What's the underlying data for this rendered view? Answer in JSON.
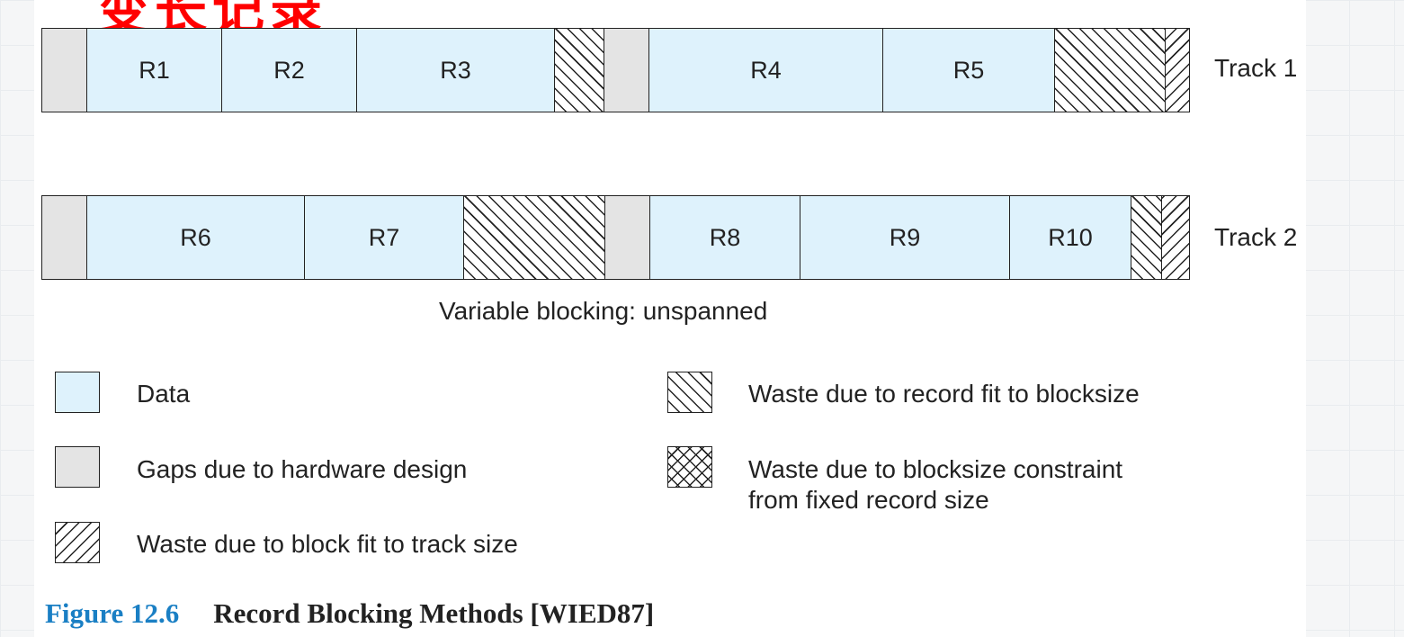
{
  "heading_fragment": "变长记录",
  "track1": {
    "label": "Track 1",
    "segments": [
      {
        "type": "gap"
      },
      {
        "type": "data",
        "label": "R1"
      },
      {
        "type": "data",
        "label": "R2"
      },
      {
        "type": "data",
        "label": "R3"
      },
      {
        "type": "waste-record"
      },
      {
        "type": "gap"
      },
      {
        "type": "data",
        "label": "R4"
      },
      {
        "type": "data",
        "label": "R5"
      },
      {
        "type": "waste-record"
      },
      {
        "type": "waste-track"
      }
    ]
  },
  "track2": {
    "label": "Track 2",
    "segments": [
      {
        "type": "gap"
      },
      {
        "type": "data",
        "label": "R6"
      },
      {
        "type": "data",
        "label": "R7"
      },
      {
        "type": "waste-record"
      },
      {
        "type": "gap"
      },
      {
        "type": "data",
        "label": "R8"
      },
      {
        "type": "data",
        "label": "R9"
      },
      {
        "type": "data",
        "label": "R10"
      },
      {
        "type": "waste-record"
      },
      {
        "type": "waste-track"
      }
    ]
  },
  "caption": "Variable blocking: unspanned",
  "legend": {
    "data": "Data",
    "gaps": "Gaps due to hardware design",
    "waste_track": "Waste due to block fit to track size",
    "waste_record": "Waste due to record fit to blocksize",
    "waste_constraint_line1": "Waste due to blocksize constraint",
    "waste_constraint_line2": "from fixed record size"
  },
  "figure": {
    "number": "Figure 12.6",
    "title": "Record Blocking Methods [WIED87]"
  },
  "colors": {
    "data": "#def2fc",
    "gap": "#e4e4e4",
    "heading": "#ff0000",
    "figure_number": "#1a7fc4"
  }
}
